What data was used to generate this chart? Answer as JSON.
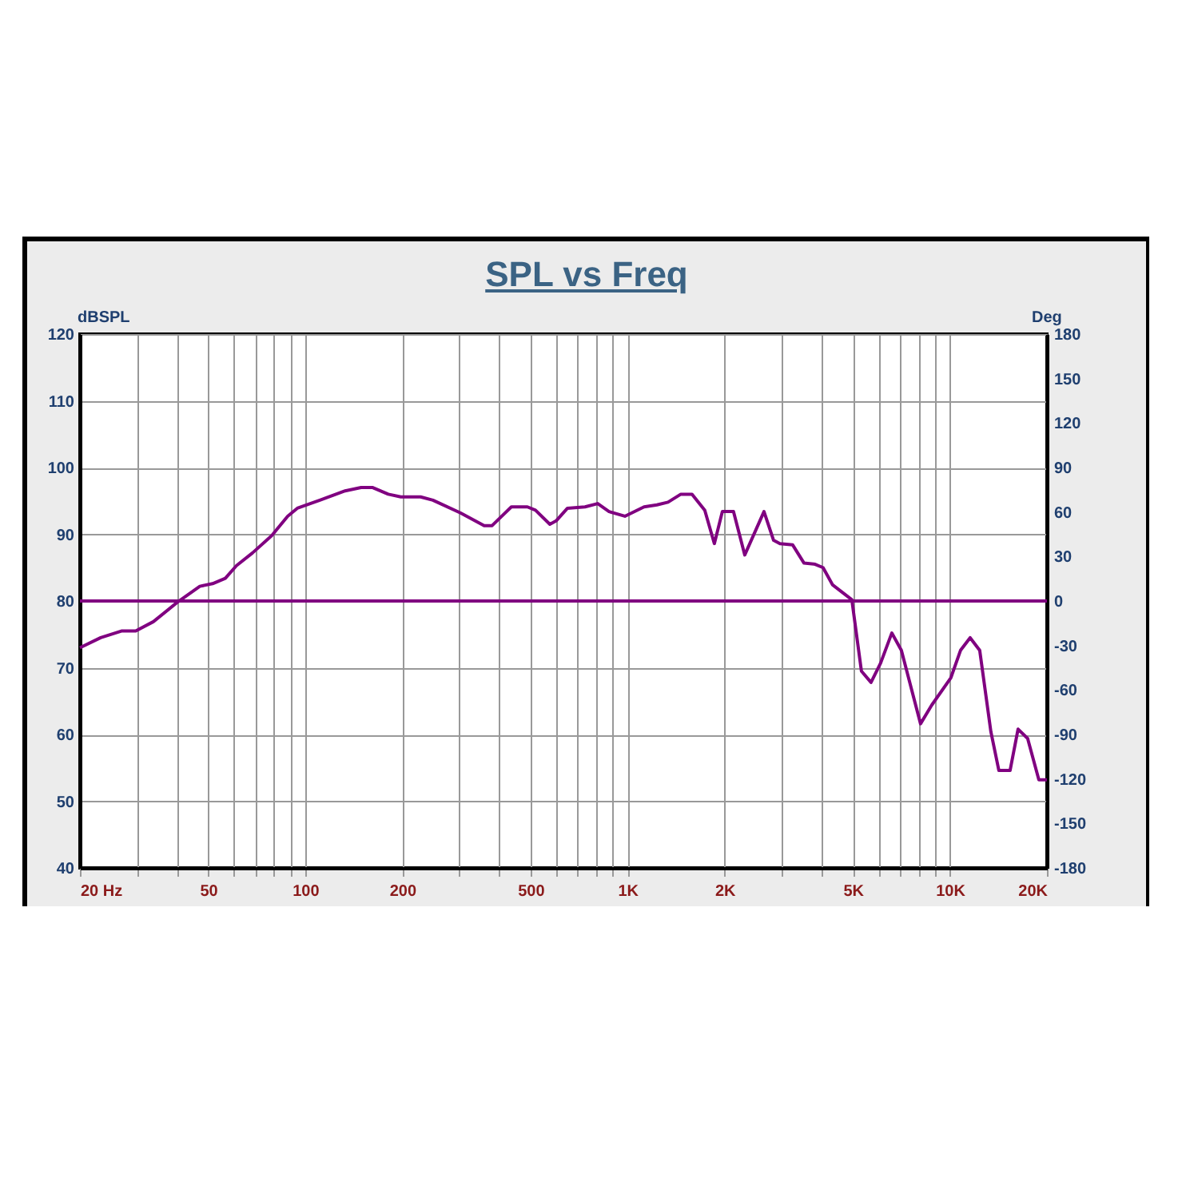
{
  "chart_data": {
    "type": "line",
    "title": "SPL vs Freq",
    "ylabel": "dBSPL",
    "y2label": "Deg",
    "series": [
      {
        "color": "#800080",
        "x": [
          20,
          23.2,
          26.9,
          29.8,
          33.8,
          40.1,
          47.1,
          51.6,
          56.5,
          61.2,
          68.6,
          78.7,
          88.2,
          94.5,
          111,
          133,
          149,
          162,
          181,
          198,
          228,
          249,
          303,
          359,
          380,
          403,
          436,
          489,
          518,
          574,
          600,
          651,
          738,
          808,
          876,
          981,
          1125,
          1233,
          1335,
          1463,
          1585,
          1736,
          1859,
          1968,
          2131,
          2310,
          2650,
          2838,
          2970,
          3253,
          3524,
          3818,
          4041,
          4328,
          4963,
          5315,
          5692,
          6097,
          6603,
          7071,
          8108,
          8783,
          10070,
          10787,
          11554,
          12373,
          13402,
          14187,
          15370,
          16272,
          17423,
          18878,
          20000
        ],
        "values": [
          73,
          74.5,
          75.5,
          75.5,
          76.9,
          79.8,
          82.2,
          82.6,
          83.4,
          85.3,
          87.2,
          89.8,
          92.7,
          93.9,
          95.1,
          96.5,
          97,
          97,
          96,
          95.6,
          95.6,
          95.1,
          93.2,
          91.3,
          91.3,
          92.5,
          94.1,
          94.1,
          93.6,
          91.5,
          92,
          93.9,
          94.1,
          94.6,
          93.4,
          92.7,
          94.1,
          94.4,
          94.8,
          96,
          96,
          93.6,
          88.6,
          93.4,
          93.4,
          86.9,
          93.4,
          89.1,
          88.6,
          88.4,
          85.7,
          85.5,
          85,
          82.4,
          80.2,
          69.5,
          67.8,
          70.7,
          75.2,
          72.6,
          61.6,
          64.4,
          68.5,
          72.6,
          74.5,
          72.6,
          60.4,
          54.6,
          54.6,
          60.8,
          59.4,
          53.2,
          53.2
        ]
      },
      {
        "color": "#800080",
        "axis": "y2",
        "x": [
          20,
          20000
        ],
        "values": [
          0,
          0
        ]
      }
    ],
    "log": "x",
    "xlim": [
      20,
      20000
    ],
    "xticks": [
      {
        "value": 20,
        "label": "20 Hz"
      },
      {
        "value": 30,
        "label": null
      },
      {
        "value": 40,
        "label": null
      },
      50,
      {
        "value": 60,
        "label": null
      },
      {
        "value": 70,
        "label": null
      },
      {
        "value": 80,
        "label": null
      },
      {
        "value": 90,
        "label": null
      },
      100,
      200,
      {
        "value": 300,
        "label": null
      },
      {
        "value": 400,
        "label": null
      },
      500,
      {
        "value": 600,
        "label": null
      },
      {
        "value": 700,
        "label": null
      },
      {
        "value": 800,
        "label": null
      },
      {
        "value": 900,
        "label": null
      },
      {
        "value": 1000,
        "label": "1K"
      },
      {
        "value": 2000,
        "label": "2K"
      },
      {
        "value": 3000,
        "label": null
      },
      {
        "value": 4000,
        "label": null
      },
      {
        "value": 5000,
        "label": "5K"
      },
      {
        "value": 6000,
        "label": null
      },
      {
        "value": 7000,
        "label": null
      },
      {
        "value": 8000,
        "label": null
      },
      {
        "value": 9000,
        "label": null
      },
      {
        "value": 10000,
        "label": "10K"
      },
      {
        "value": 20000,
        "label": "20K"
      }
    ],
    "ylim": [
      40,
      120
    ],
    "yticks": [
      40,
      50,
      60,
      70,
      80,
      90,
      100,
      110,
      120
    ],
    "y2lim": [
      -180,
      180
    ],
    "y2ticks": [
      -180,
      -150,
      -120,
      -90,
      -60,
      -30,
      0,
      30,
      60,
      90,
      120,
      150,
      180
    ],
    "grid": true,
    "marker": "none",
    "line_style": "solid"
  }
}
